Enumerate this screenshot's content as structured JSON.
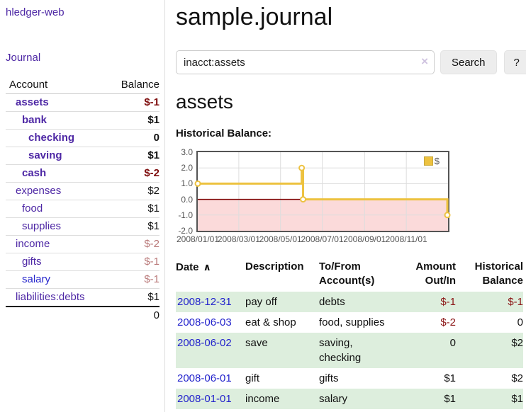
{
  "app_title": "hledger-web",
  "sidebar": {
    "journal_link": "Journal",
    "accounts_table": {
      "headers": {
        "account": "Account",
        "balance": "Balance"
      },
      "rows": [
        {
          "account": "assets",
          "balance": "$-1",
          "depth": 1,
          "bold": true,
          "balance_style": "neg-strong"
        },
        {
          "account": "bank",
          "balance": "$1",
          "depth": 2,
          "bold": true,
          "balance_style": ""
        },
        {
          "account": "checking",
          "balance": "0",
          "depth": 3,
          "bold": true,
          "balance_style": ""
        },
        {
          "account": "saving",
          "balance": "$1",
          "depth": 3,
          "bold": true,
          "balance_style": ""
        },
        {
          "account": "cash",
          "balance": "$-2",
          "depth": 2,
          "bold": true,
          "balance_style": "neg-strong"
        },
        {
          "account": "expenses",
          "balance": "$2",
          "depth": 1,
          "bold": false,
          "balance_style": ""
        },
        {
          "account": "food",
          "balance": "$1",
          "depth": 2,
          "bold": false,
          "balance_style": ""
        },
        {
          "account": "supplies",
          "balance": "$1",
          "depth": 2,
          "bold": false,
          "balance_style": ""
        },
        {
          "account": "income",
          "balance": "$-2",
          "depth": 1,
          "bold": false,
          "balance_style": "neg-soft"
        },
        {
          "account": "gifts",
          "balance": "$-1",
          "depth": 2,
          "bold": false,
          "balance_style": "neg-soft"
        },
        {
          "account": "salary",
          "balance": "$-1",
          "depth": 2,
          "bold": false,
          "balance_style": "neg-soft",
          "link_blue": true
        },
        {
          "account": "liabilities:debts",
          "balance": "$1",
          "depth": 1,
          "bold": false,
          "balance_style": ""
        }
      ],
      "total": "0"
    }
  },
  "header": {
    "title": "sample.journal"
  },
  "search": {
    "query": "inacct:assets",
    "clear_icon": "×",
    "search_button": "Search",
    "help_button": "?"
  },
  "account_page": {
    "title": "assets",
    "chart_caption": "Historical Balance:"
  },
  "chart_data": {
    "type": "line",
    "title": "Historical Balance:",
    "step": true,
    "x_range": [
      "2008-01-01",
      "2009-01-01"
    ],
    "ylim": [
      -2,
      3
    ],
    "yticks": [
      {
        "label": "3.0",
        "value": 3
      },
      {
        "label": "2.0",
        "value": 2
      },
      {
        "label": "1.0",
        "value": 1
      },
      {
        "label": "0.0",
        "value": 0
      },
      {
        "label": "-1.0",
        "value": -1
      },
      {
        "label": "-2.0",
        "value": -2
      }
    ],
    "xticks": [
      {
        "label": "2008/01/01",
        "date": "2008-01-01"
      },
      {
        "label": "2008/03/01",
        "date": "2008-03-01"
      },
      {
        "label": "2008/05/01",
        "date": "2008-05-01"
      },
      {
        "label": "2008/07/01",
        "date": "2008-07-01"
      },
      {
        "label": "2008/09/01",
        "date": "2008-09-01"
      },
      {
        "label": "2008/11/01",
        "date": "2008-11-01"
      }
    ],
    "grid_dates": [
      "2008-03-01",
      "2008-05-01",
      "2008-07-01",
      "2008-09-01",
      "2008-11-01"
    ],
    "grid_values": [
      2,
      1,
      -1
    ],
    "series": [
      {
        "name": "$",
        "color": "#edc240",
        "points": [
          {
            "date": "2008-01-01",
            "value": 1
          },
          {
            "date": "2008-06-01",
            "value": 2
          },
          {
            "date": "2008-06-03",
            "value": 0
          },
          {
            "date": "2008-12-31",
            "value": -1
          }
        ]
      }
    ],
    "legend": {
      "label": "$",
      "position": "top-right"
    },
    "negative_region_color": "#fbdada",
    "zero_line_color": "#7c0000",
    "grid_color": "#dddddd",
    "border_color": "#545454"
  },
  "register_table": {
    "headers": {
      "date": "Date",
      "description": "Description",
      "accounts": "To/From Account(s)",
      "amount": "Amount Out/In",
      "balance": "Historical Balance"
    },
    "sort_icon": "∧",
    "rows": [
      {
        "date": "2008-12-31",
        "description": "pay off",
        "accounts": "debts",
        "amount": "$-1",
        "balance": "$-1",
        "amount_neg": true,
        "balance_neg": true,
        "striped": true
      },
      {
        "date": "2008-06-03",
        "description": "eat & shop",
        "accounts": "food, supplies",
        "amount": "$-2",
        "balance": "0",
        "amount_neg": true,
        "balance_neg": false,
        "striped": false
      },
      {
        "date": "2008-06-02",
        "description": "save",
        "accounts": "saving, checking",
        "amount": "0",
        "balance": "$2",
        "amount_neg": false,
        "balance_neg": false,
        "striped": true
      },
      {
        "date": "2008-06-01",
        "description": "gift",
        "accounts": "gifts",
        "amount": "$1",
        "balance": "$2",
        "amount_neg": false,
        "balance_neg": false,
        "striped": false
      },
      {
        "date": "2008-01-01",
        "description": "income",
        "accounts": "salary",
        "amount": "$1",
        "balance": "$1",
        "amount_neg": false,
        "balance_neg": false,
        "striped": true
      }
    ]
  },
  "colors": {
    "link_purple": "#4e28a5",
    "link_blue": "#2323cc",
    "negative_strong": "#7d0b0b",
    "negative_soft": "#b97979",
    "register_negative": "#8b1515",
    "row_stripe_green": "#ddeedd",
    "series_yellow": "#edc240"
  }
}
